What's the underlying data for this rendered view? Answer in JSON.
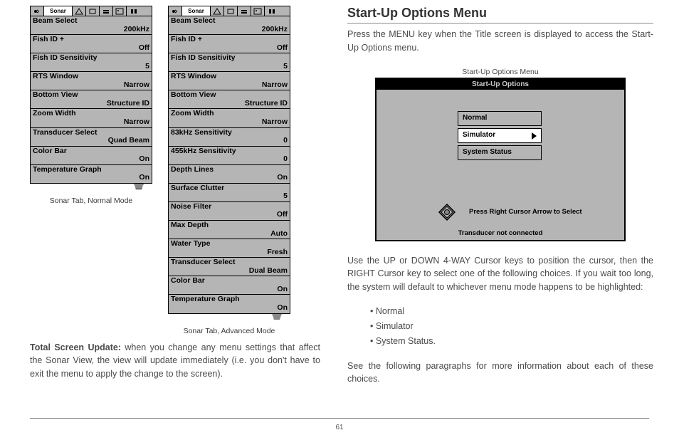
{
  "page_number": "61",
  "left": {
    "panel_normal": {
      "active_tab": "Sonar",
      "rows": [
        {
          "label": "Beam Select",
          "value": "200kHz"
        },
        {
          "label": "Fish ID +",
          "value": "Off"
        },
        {
          "label": "Fish ID Sensitivity",
          "value": "5"
        },
        {
          "label": "RTS Window",
          "value": "Narrow"
        },
        {
          "label": "Bottom View",
          "value": "Structure ID"
        },
        {
          "label": "Zoom Width",
          "value": "Narrow"
        },
        {
          "label": "Transducer Select",
          "value": "Quad Beam"
        },
        {
          "label": "Color Bar",
          "value": "On"
        },
        {
          "label": "Temperature Graph",
          "value": "On"
        }
      ],
      "caption": "Sonar Tab, Normal Mode"
    },
    "panel_advanced": {
      "active_tab": "Sonar",
      "rows": [
        {
          "label": "Beam Select",
          "value": "200kHz"
        },
        {
          "label": "Fish ID +",
          "value": "Off"
        },
        {
          "label": "Fish ID Sensitivity",
          "value": "5"
        },
        {
          "label": "RTS Window",
          "value": "Narrow"
        },
        {
          "label": "Bottom View",
          "value": "Structure ID"
        },
        {
          "label": "Zoom Width",
          "value": "Narrow"
        },
        {
          "label": "83kHz Sensitivity",
          "value": "0"
        },
        {
          "label": "455kHz Sensitivity",
          "value": "0"
        },
        {
          "label": "Depth Lines",
          "value": "On"
        },
        {
          "label": "Surface Clutter",
          "value": "5"
        },
        {
          "label": "Noise Filter",
          "value": "Off"
        },
        {
          "label": "Max Depth",
          "value": "Auto"
        },
        {
          "label": "Water Type",
          "value": "Fresh"
        },
        {
          "label": "Transducer Select",
          "value": "Dual Beam"
        },
        {
          "label": "Color Bar",
          "value": "On"
        },
        {
          "label": "Temperature Graph",
          "value": "On"
        }
      ],
      "caption": "Sonar Tab, Advanced Mode"
    },
    "total_screen_bold": "Total Screen Update:",
    "total_screen_text": " when you change any menu settings that affect the Sonar View, the view will update immediately (i.e. you don't have to exit the menu to apply the change to the screen)."
  },
  "right": {
    "heading": "Start-Up Options Menu",
    "intro": "Press the MENU key when the Title screen is displayed to access the Start-Up Options menu.",
    "screen_caption": "Start-Up Options Menu",
    "screen": {
      "title": "Start-Up Options",
      "options": [
        "Normal",
        "Simulator",
        "System Status"
      ],
      "selected_index": 1,
      "cursor_hint": "Press Right Cursor Arrow to Select",
      "footer": "Transducer not connected"
    },
    "para2": "Use the UP or DOWN 4-WAY Cursor keys to position the cursor, then the RIGHT Cursor key to select one of the following choices. If you wait too long, the system will default to whichever menu mode happens to be highlighted:",
    "bullets": [
      "Normal",
      "Simulator",
      "System Status."
    ],
    "para3": "See the following paragraphs for more information about each of these choices."
  }
}
